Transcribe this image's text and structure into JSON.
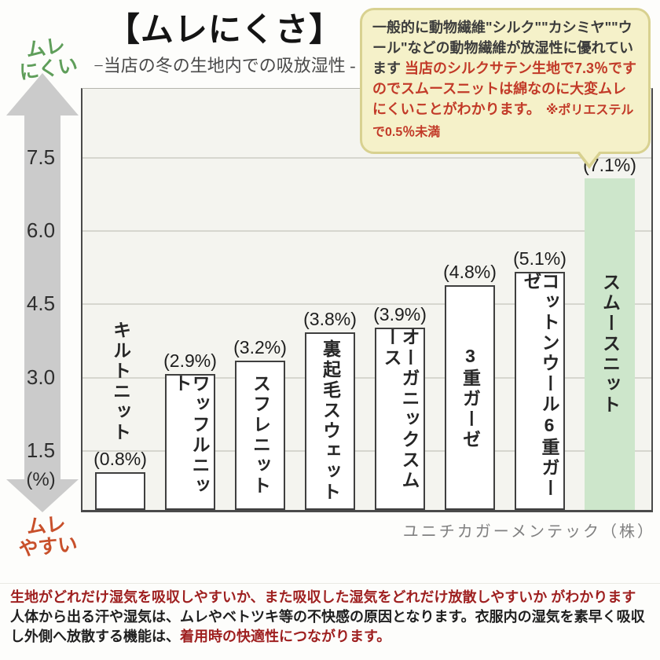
{
  "header": {
    "title": "【ムレにくさ】",
    "subtitle": "−当店の冬の生地内での吸放湿性 -"
  },
  "bubble": {
    "intro": "一般的に動物繊維\"シルク\"\"カシミヤ\"\"ウール\"などの動物繊維が放湿性に優れています ",
    "highlight": "当店のシルクサテン生地で7.3％ですのでスムースニットは綿なのに大変ムレにくいことがわかります。",
    "note": "　※ポリエステルで0.5％未満",
    "bg_color": "#f5f1c9",
    "border_color": "#d8d190",
    "red_color": "#c23a28"
  },
  "axis": {
    "top_label": [
      "ムレ",
      "にくい"
    ],
    "bottom_label": [
      "ムレ",
      "やすい"
    ],
    "top_label_color": "#5f9e5a",
    "bottom_label_color": "#c8502b",
    "arrow_color": "#cbcbcb",
    "unit_label": "(%)"
  },
  "chart_data": {
    "type": "bar",
    "title": "ムレにくさ −当店の冬の生地内での吸放湿性-",
    "categories": [
      "キルトニット",
      "ワッフルニット",
      "スフレニット",
      "裏起毛スウェット",
      "オーガニックスムース",
      "3重ガーゼ",
      "コットンウール6重ガーゼ",
      "スムースニット"
    ],
    "values": [
      0.8,
      2.9,
      3.2,
      3.8,
      3.9,
      4.8,
      5.1,
      7.1
    ],
    "value_labels": [
      "(0.8%)",
      "(2.9%)",
      "(3.2%)",
      "(3.8%)",
      "(3.9%)",
      "(4.8%)",
      "(5.1%)",
      "(7.1%)"
    ],
    "ylabel": "(%)",
    "ylim": [
      0,
      8.7
    ],
    "yticks": [
      7.5,
      6.0,
      4.5,
      3.0,
      1.5
    ],
    "ytick_labels": [
      "7.5",
      "6.0",
      "4.5",
      "3.0",
      "1.5"
    ],
    "grid": "horizontal",
    "legend": "none",
    "bar_fill": "#ffffff",
    "bar_border": "#3f3f3f",
    "highlight_index": 7,
    "highlight_fill": "#cde6cb",
    "label_outside_index": 0,
    "source": "ユニチカガーメンテック（株）"
  },
  "footer": {
    "red1": "生地がどれだけ湿気を吸収しやすいか、また吸収した湿気をどれだけ放散しやすいか がわかります",
    "black": "人体から出る汗や湿気は、ムレやベトツキ等の不快感の原因となります。衣服内の湿気を素早く吸収し外側へ放散する機能は、",
    "red2": "着用時の快適性につながります。",
    "red_color": "#9e1f1f"
  }
}
